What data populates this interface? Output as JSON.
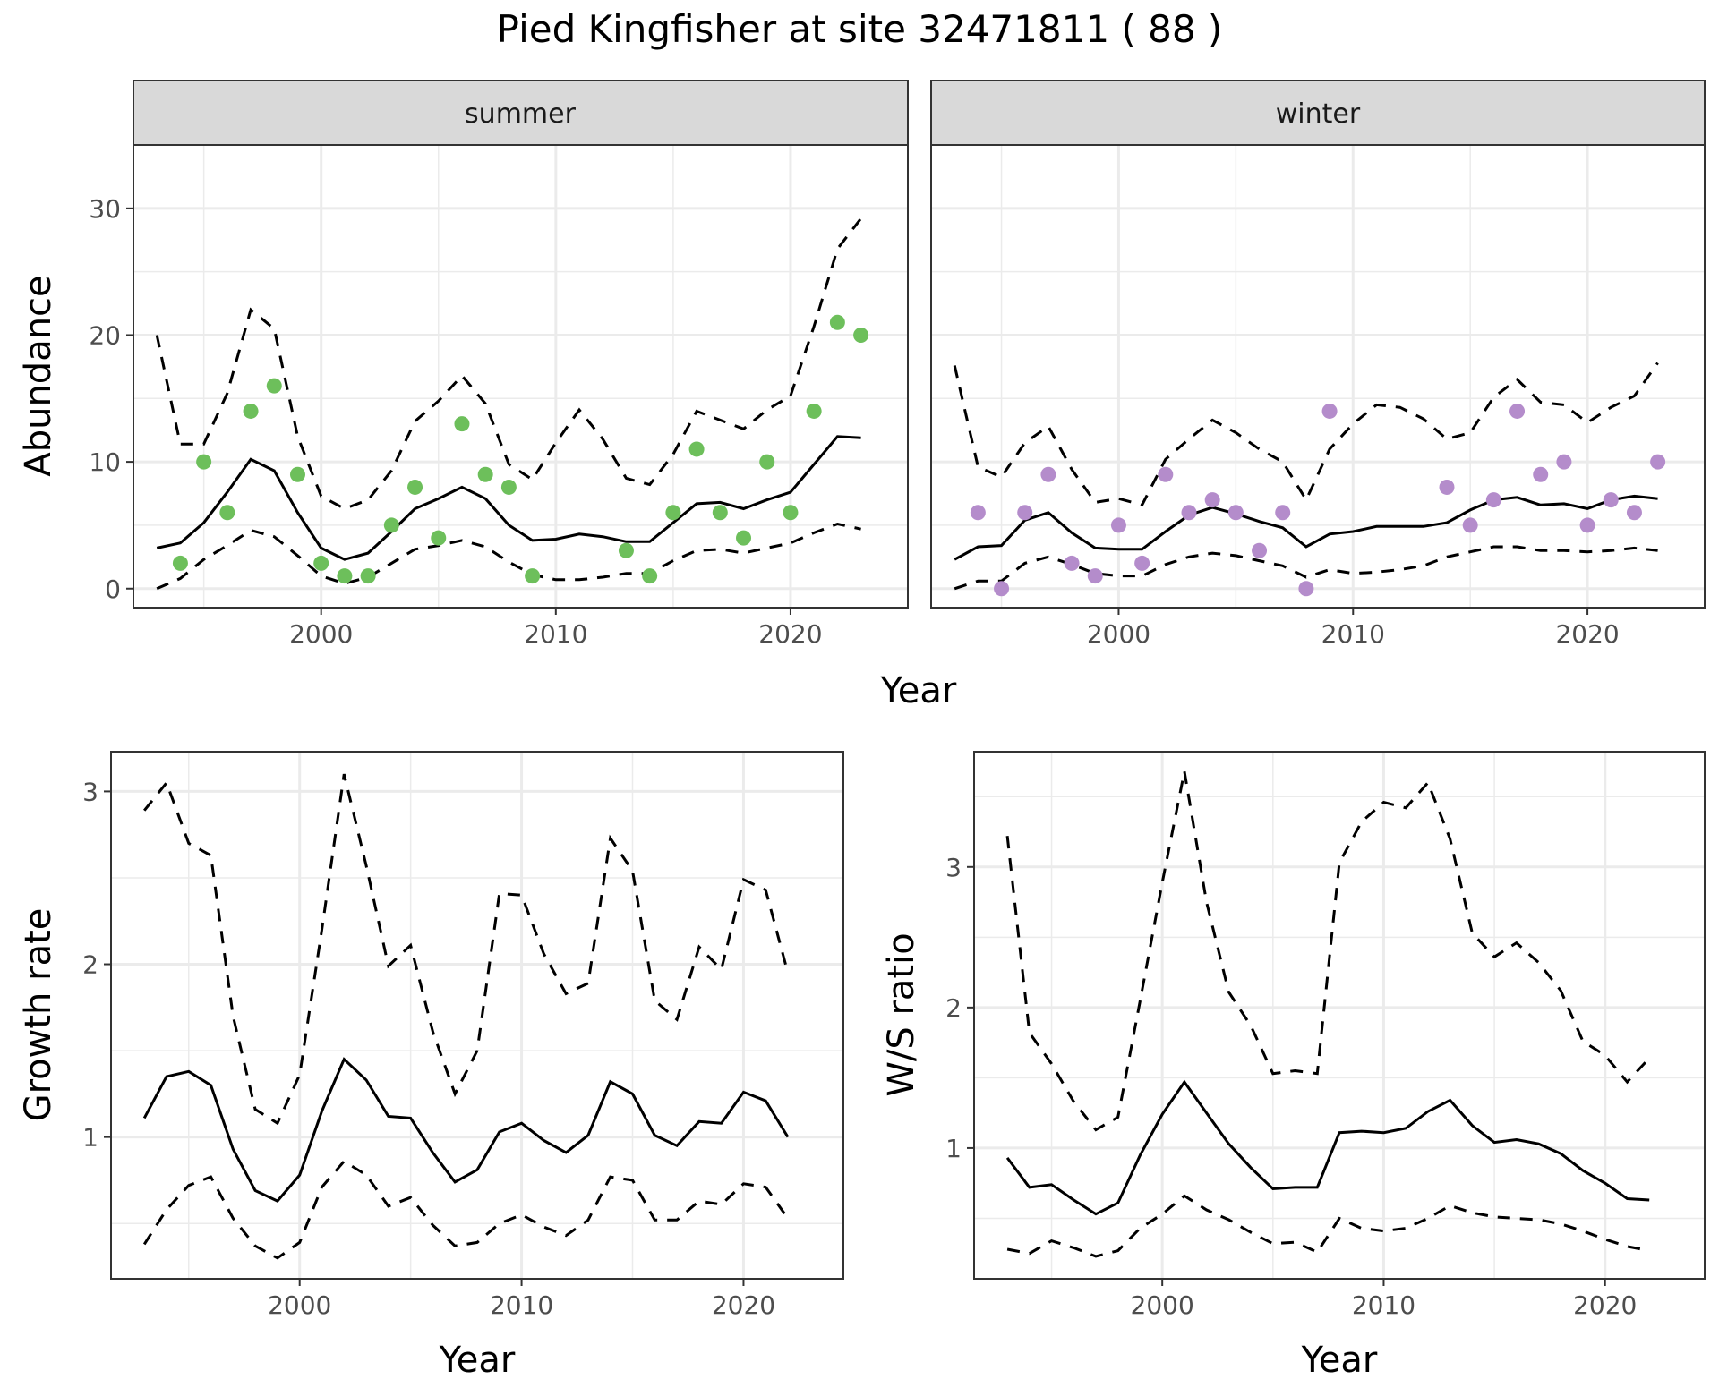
{
  "title": "Pied Kingfisher at site 32471811 ( 88 )",
  "colors": {
    "summer_points": "#6dbf5b",
    "winter_points": "#b48ccb",
    "lines": "#000000",
    "strip": "#d9d9d9"
  },
  "chart_data": [
    {
      "id": "summer",
      "type": "line",
      "facet": "summer",
      "xlabel": "",
      "ylabel": "Abundance",
      "xlim": [
        1992,
        2025
      ],
      "ylim": [
        -1.5,
        35
      ],
      "xticks": [
        2000,
        2010,
        2020
      ],
      "yticks": [
        0,
        10,
        20,
        30
      ],
      "grid": true,
      "x": [
        1993,
        1994,
        1995,
        1996,
        1997,
        1998,
        1999,
        2000,
        2001,
        2002,
        2003,
        2004,
        2005,
        2006,
        2007,
        2008,
        2009,
        2010,
        2011,
        2012,
        2013,
        2014,
        2015,
        2016,
        2017,
        2018,
        2019,
        2020,
        2021,
        2022,
        2023
      ],
      "series": [
        {
          "role": "fit",
          "style": "solid",
          "values": [
            3.2,
            3.6,
            5.2,
            7.6,
            10.2,
            9.3,
            6.0,
            3.2,
            2.3,
            2.8,
            4.5,
            6.3,
            7.1,
            8.0,
            7.1,
            5.0,
            3.8,
            3.9,
            4.3,
            4.1,
            3.7,
            3.7,
            5.2,
            6.7,
            6.8,
            6.3,
            7.0,
            7.6,
            9.8,
            12.0,
            11.9
          ]
        },
        {
          "role": "lower",
          "style": "dashed",
          "values": [
            0.0,
            0.8,
            2.3,
            3.4,
            4.6,
            4.1,
            2.6,
            1.0,
            0.4,
            0.9,
            2.0,
            3.1,
            3.4,
            3.8,
            3.3,
            2.1,
            1.1,
            0.7,
            0.7,
            0.9,
            1.2,
            1.2,
            2.2,
            3.0,
            3.1,
            2.8,
            3.2,
            3.6,
            4.4,
            5.1,
            4.7
          ]
        },
        {
          "role": "upper",
          "style": "dashed",
          "values": [
            20.0,
            11.4,
            11.4,
            15.4,
            22.0,
            20.5,
            12.0,
            7.3,
            6.3,
            7.0,
            9.3,
            13.2,
            14.8,
            16.8,
            14.6,
            9.8,
            8.6,
            11.5,
            14.1,
            11.8,
            8.7,
            8.2,
            10.6,
            14.0,
            13.3,
            12.6,
            14.1,
            15.2,
            20.7,
            26.8,
            29.2
          ]
        }
      ],
      "points": {
        "x": [
          1994,
          1995,
          1996,
          1997,
          1998,
          1999,
          2000,
          2001,
          2002,
          2003,
          2004,
          2005,
          2006,
          2007,
          2008,
          2009,
          2013,
          2014,
          2015,
          2016,
          2017,
          2018,
          2019,
          2020,
          2021,
          2022,
          2023
        ],
        "y": [
          2,
          10,
          6,
          14,
          16,
          9,
          2,
          1,
          1,
          5,
          8,
          4,
          13,
          9,
          8,
          1,
          3,
          1,
          6,
          11,
          6,
          4,
          10,
          6,
          14,
          21,
          20
        ]
      }
    },
    {
      "id": "winter",
      "type": "line",
      "facet": "winter",
      "xlabel": "",
      "ylabel": "",
      "xlim": [
        1992,
        2025
      ],
      "ylim": [
        -1.5,
        35
      ],
      "xticks": [
        2000,
        2010,
        2020
      ],
      "yticks": [
        0,
        10,
        20,
        30
      ],
      "grid": true,
      "x": [
        1993,
        1994,
        1995,
        1996,
        1997,
        1998,
        1999,
        2000,
        2001,
        2002,
        2003,
        2004,
        2005,
        2006,
        2007,
        2008,
        2009,
        2010,
        2011,
        2012,
        2013,
        2014,
        2015,
        2016,
        2017,
        2018,
        2019,
        2020,
        2021,
        2022,
        2023
      ],
      "series": [
        {
          "role": "fit",
          "style": "solid",
          "values": [
            2.3,
            3.3,
            3.4,
            5.4,
            6.0,
            4.4,
            3.2,
            3.1,
            3.1,
            4.5,
            5.8,
            6.4,
            5.9,
            5.3,
            4.8,
            3.3,
            4.3,
            4.5,
            4.9,
            4.9,
            4.9,
            5.2,
            6.2,
            7.0,
            7.2,
            6.6,
            6.7,
            6.3,
            7.0,
            7.3,
            7.1
          ]
        },
        {
          "role": "lower",
          "style": "dashed",
          "values": [
            0.0,
            0.6,
            0.6,
            2.0,
            2.5,
            1.9,
            1.2,
            1.0,
            1.0,
            1.9,
            2.5,
            2.8,
            2.6,
            2.2,
            1.8,
            0.9,
            1.5,
            1.2,
            1.3,
            1.5,
            1.8,
            2.5,
            2.9,
            3.3,
            3.3,
            3.0,
            3.0,
            2.9,
            3.0,
            3.2,
            3.0
          ]
        },
        {
          "role": "upper",
          "style": "dashed",
          "values": [
            17.6,
            9.6,
            8.8,
            11.5,
            12.8,
            9.4,
            6.8,
            7.1,
            6.6,
            10.2,
            11.8,
            13.3,
            12.3,
            11.0,
            10.0,
            7.0,
            11.0,
            13.0,
            14.5,
            14.3,
            13.4,
            11.8,
            12.3,
            15.1,
            16.5,
            14.7,
            14.5,
            13.1,
            14.3,
            15.2,
            17.8
          ]
        }
      ],
      "points": {
        "x": [
          1994,
          1995,
          1996,
          1997,
          1998,
          1999,
          2000,
          2001,
          2002,
          2003,
          2004,
          2005,
          2006,
          2007,
          2008,
          2009,
          2014,
          2015,
          2016,
          2017,
          2018,
          2019,
          2020,
          2021,
          2022,
          2023
        ],
        "y": [
          6,
          0,
          6,
          9,
          2,
          1,
          5,
          2,
          9,
          6,
          7,
          6,
          3,
          6,
          0,
          14,
          8,
          5,
          7,
          14,
          9,
          10,
          5,
          7,
          6,
          10
        ]
      }
    },
    {
      "id": "growth",
      "type": "line",
      "xlabel": "Year",
      "ylabel": "Growth rate",
      "xlim": [
        1991.5,
        2024.5
      ],
      "ylim": [
        0.18,
        3.23
      ],
      "xticks": [
        2000,
        2010,
        2020
      ],
      "yticks": [
        1,
        2,
        3
      ],
      "grid": true,
      "x": [
        1993,
        1994,
        1995,
        1996,
        1997,
        1998,
        1999,
        2000,
        2001,
        2002,
        2003,
        2004,
        2005,
        2006,
        2007,
        2008,
        2009,
        2010,
        2011,
        2012,
        2013,
        2014,
        2015,
        2016,
        2017,
        2018,
        2019,
        2020,
        2021,
        2022
      ],
      "series": [
        {
          "role": "fit",
          "style": "solid",
          "values": [
            1.11,
            1.35,
            1.38,
            1.3,
            0.93,
            0.69,
            0.63,
            0.78,
            1.15,
            1.45,
            1.33,
            1.12,
            1.11,
            0.91,
            0.74,
            0.81,
            1.03,
            1.08,
            0.98,
            0.91,
            1.01,
            1.32,
            1.25,
            1.01,
            0.95,
            1.09,
            1.08,
            1.26,
            1.21,
            1.0
          ]
        },
        {
          "role": "lower",
          "style": "dashed",
          "values": [
            0.38,
            0.58,
            0.72,
            0.77,
            0.53,
            0.37,
            0.3,
            0.39,
            0.71,
            0.86,
            0.78,
            0.6,
            0.65,
            0.49,
            0.37,
            0.39,
            0.5,
            0.55,
            0.48,
            0.43,
            0.52,
            0.77,
            0.75,
            0.52,
            0.52,
            0.63,
            0.61,
            0.73,
            0.71,
            0.53
          ]
        },
        {
          "role": "upper",
          "style": "dashed",
          "values": [
            2.89,
            3.05,
            2.7,
            2.63,
            1.7,
            1.16,
            1.08,
            1.36,
            2.2,
            3.1,
            2.57,
            1.99,
            2.11,
            1.61,
            1.25,
            1.5,
            2.41,
            2.4,
            2.06,
            1.83,
            1.89,
            2.73,
            2.54,
            1.79,
            1.68,
            2.1,
            1.97,
            2.49,
            2.43,
            1.95
          ]
        }
      ]
    },
    {
      "id": "ratio",
      "type": "line",
      "xlabel": "Year",
      "ylabel": "W/S ratio",
      "xlim": [
        1991.5,
        2024.5
      ],
      "ylim": [
        0.07,
        3.82
      ],
      "xticks": [
        2000,
        2010,
        2020
      ],
      "yticks": [
        1,
        2,
        3
      ],
      "grid": true,
      "x": [
        1993,
        1994,
        1995,
        1996,
        1997,
        1998,
        1999,
        2000,
        2001,
        2002,
        2003,
        2004,
        2005,
        2006,
        2007,
        2008,
        2009,
        2010,
        2011,
        2012,
        2013,
        2014,
        2015,
        2016,
        2017,
        2018,
        2019,
        2020,
        2021,
        2022
      ],
      "series": [
        {
          "role": "fit",
          "style": "solid",
          "values": [
            0.93,
            0.72,
            0.74,
            0.63,
            0.53,
            0.61,
            0.95,
            1.24,
            1.47,
            1.25,
            1.03,
            0.86,
            0.71,
            0.72,
            0.72,
            1.11,
            1.12,
            1.11,
            1.14,
            1.26,
            1.34,
            1.16,
            1.04,
            1.06,
            1.03,
            0.96,
            0.84,
            0.75,
            0.64,
            0.63
          ]
        },
        {
          "role": "lower",
          "style": "dashed",
          "values": [
            0.28,
            0.25,
            0.34,
            0.29,
            0.23,
            0.27,
            0.43,
            0.53,
            0.66,
            0.56,
            0.49,
            0.4,
            0.32,
            0.33,
            0.26,
            0.5,
            0.43,
            0.41,
            0.43,
            0.5,
            0.59,
            0.54,
            0.51,
            0.5,
            0.49,
            0.46,
            0.41,
            0.35,
            0.3,
            0.27
          ]
        },
        {
          "role": "upper",
          "style": "dashed",
          "values": [
            3.22,
            1.82,
            1.6,
            1.33,
            1.13,
            1.22,
            2.05,
            2.89,
            3.68,
            2.75,
            2.11,
            1.87,
            1.53,
            1.55,
            1.53,
            3.03,
            3.32,
            3.46,
            3.42,
            3.6,
            3.2,
            2.53,
            2.36,
            2.46,
            2.32,
            2.12,
            1.76,
            1.66,
            1.47,
            1.64
          ]
        }
      ]
    }
  ],
  "shared_xlabel_top": "Year"
}
